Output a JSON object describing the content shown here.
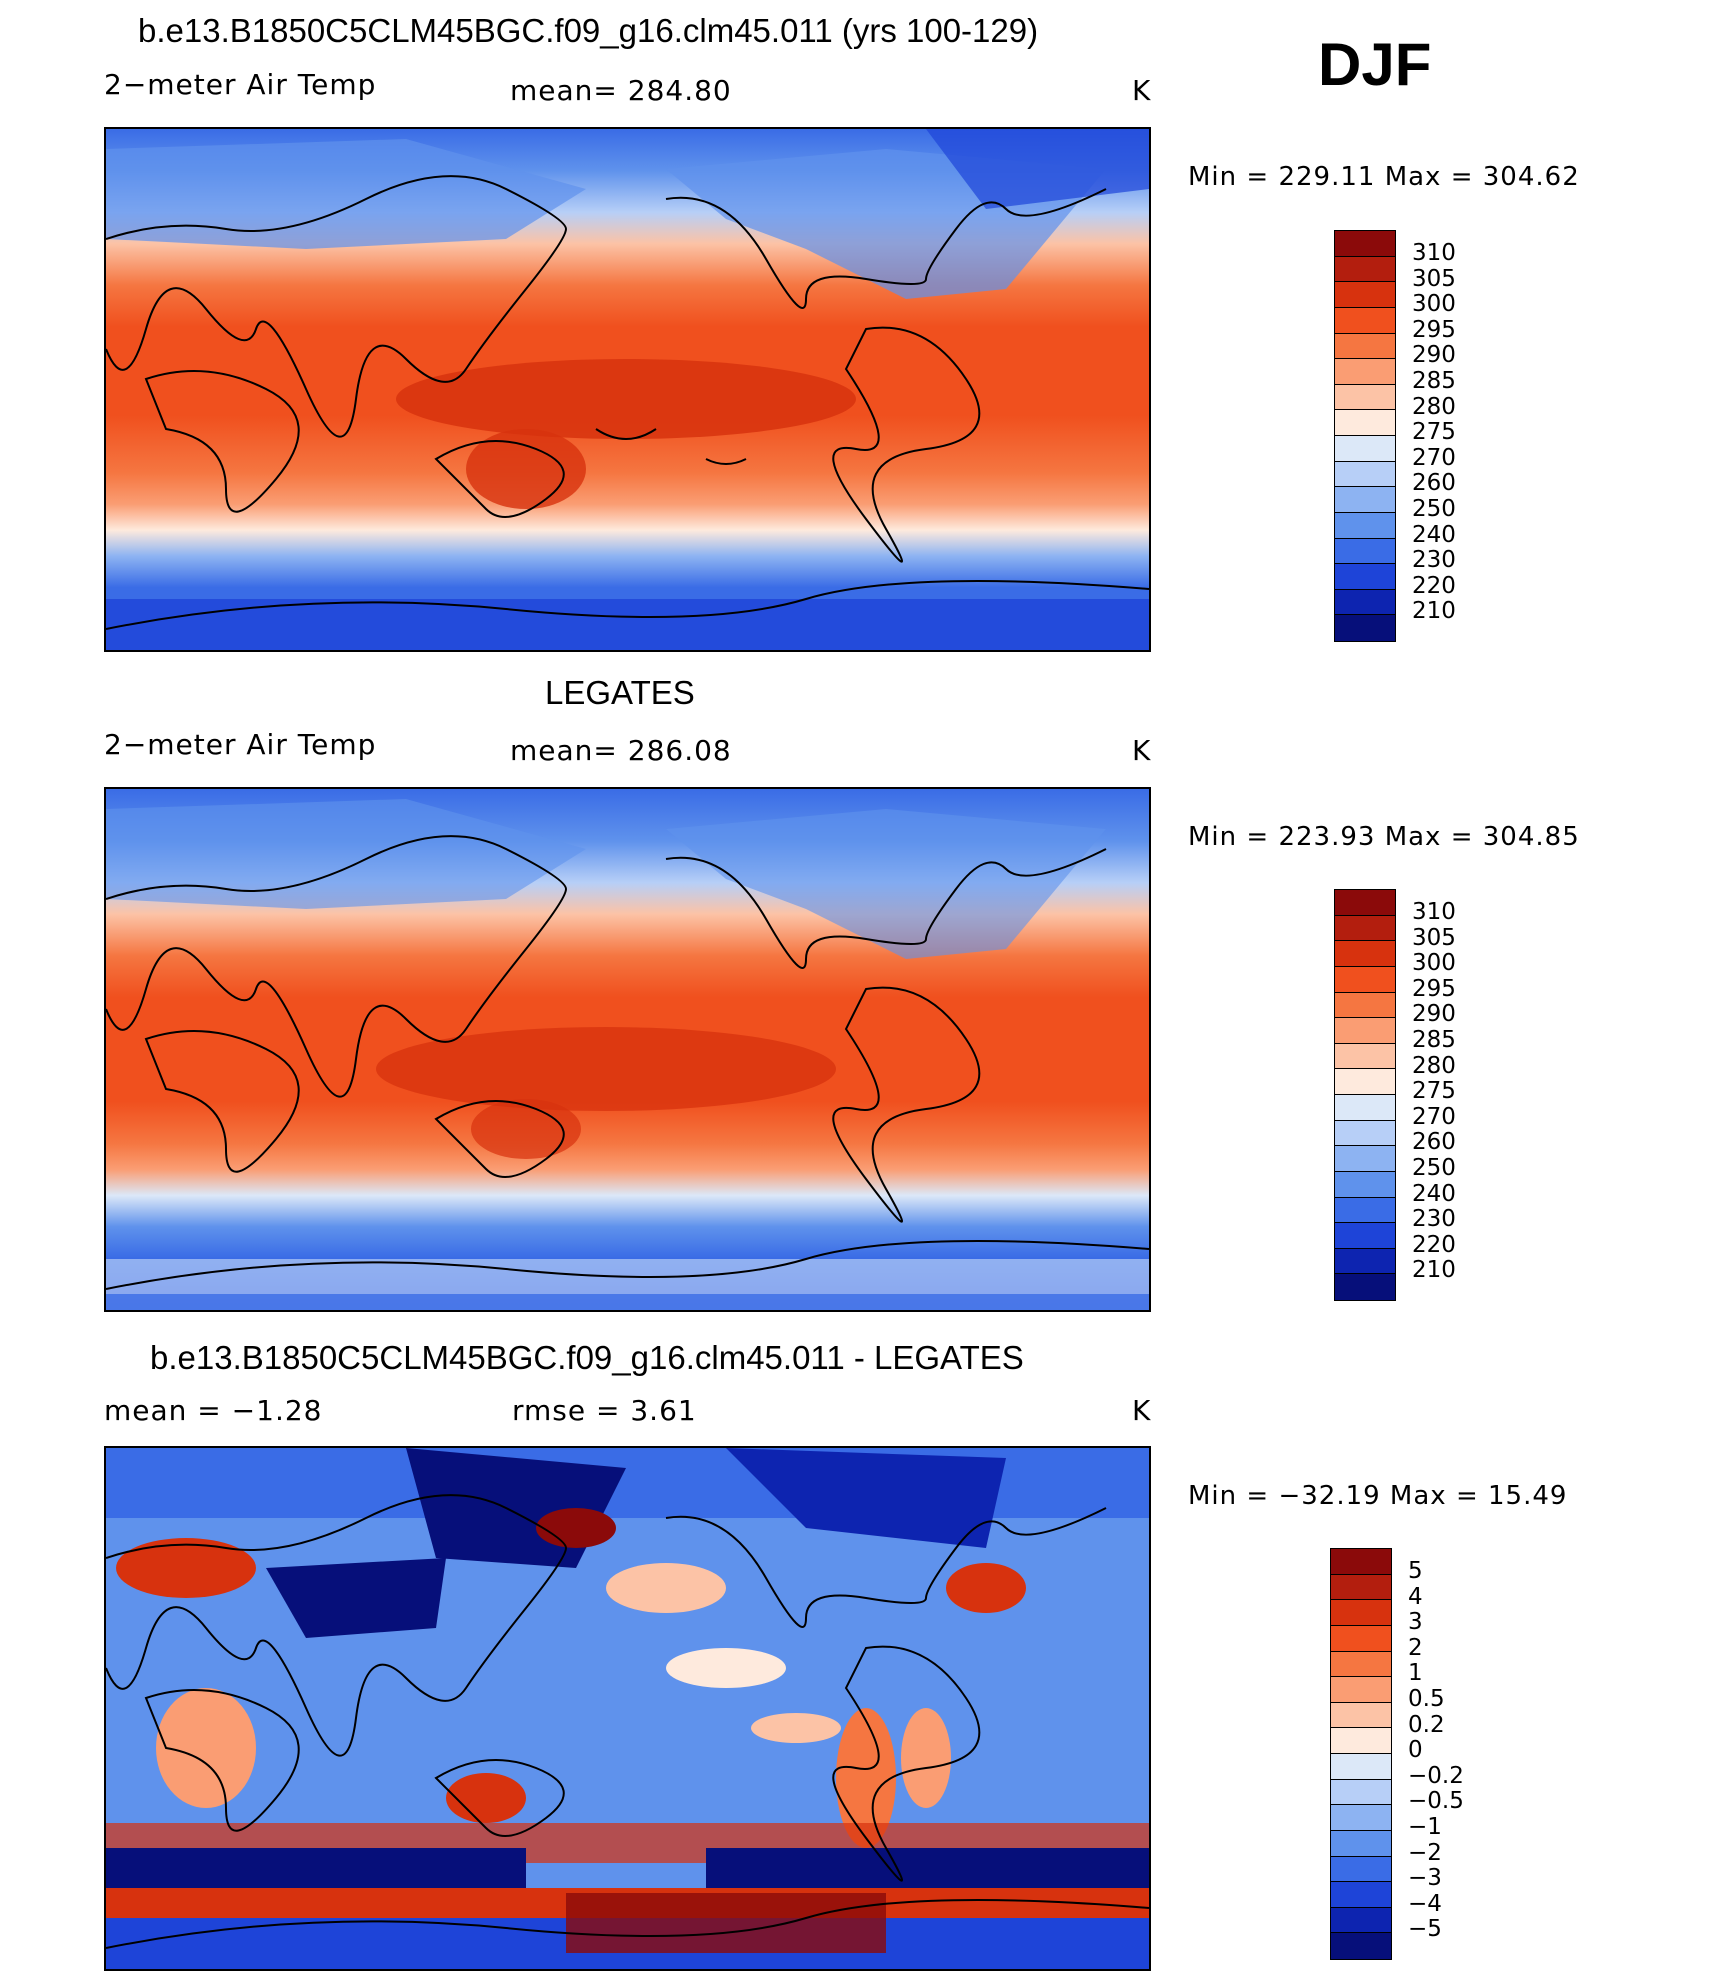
{
  "season": "DJF",
  "panels": [
    {
      "title": "b.e13.B1850C5CLM45BGC.f09_g16.clm45.011 (yrs 100-129)",
      "left_label": "2−meter Air Temp",
      "center_label": "mean= 284.80",
      "unit": "K",
      "minmax": "Min  =  229.11  Max  =  304.62"
    },
    {
      "title": "LEGATES",
      "left_label": "2−meter Air Temp",
      "center_label": "mean= 286.08",
      "unit": "K",
      "minmax": "Min  =  223.93  Max  =  304.85"
    },
    {
      "title": "b.e13.B1850C5CLM45BGC.f09_g16.clm45.011 - LEGATES",
      "left_label": "mean  =    −1.28",
      "center_label": "rmse  =     3.61",
      "unit": "K",
      "minmax": "Min  =  −32.19  Max  =    15.49"
    }
  ],
  "colorbars": {
    "abs": {
      "labels": [
        "310",
        "305",
        "300",
        "295",
        "290",
        "285",
        "280",
        "275",
        "270",
        "260",
        "250",
        "240",
        "230",
        "220",
        "210"
      ],
      "colors": [
        "#8b0a0a",
        "#b31e0e",
        "#d7320e",
        "#f0501e",
        "#f57641",
        "#fa9d73",
        "#fcc3a6",
        "#feeadd",
        "#dce8f8",
        "#b7cff7",
        "#8db3f2",
        "#5f92ec",
        "#3a6ce6",
        "#1e44d8",
        "#0d24b0",
        "#060f7a"
      ]
    },
    "diff": {
      "labels": [
        "5",
        "4",
        "3",
        "2",
        "1",
        "0.5",
        "0.2",
        "0",
        "−0.2",
        "−0.5",
        "−1",
        "−2",
        "−3",
        "−4",
        "−5"
      ],
      "colors": [
        "#8b0a0a",
        "#b31e0e",
        "#d7320e",
        "#f0501e",
        "#f57641",
        "#fa9d73",
        "#fcc3a6",
        "#feeadd",
        "#dce8f8",
        "#b7cff7",
        "#8db3f2",
        "#5f92ec",
        "#3a6ce6",
        "#1e44d8",
        "#0d24b0",
        "#060f7a"
      ]
    }
  }
}
